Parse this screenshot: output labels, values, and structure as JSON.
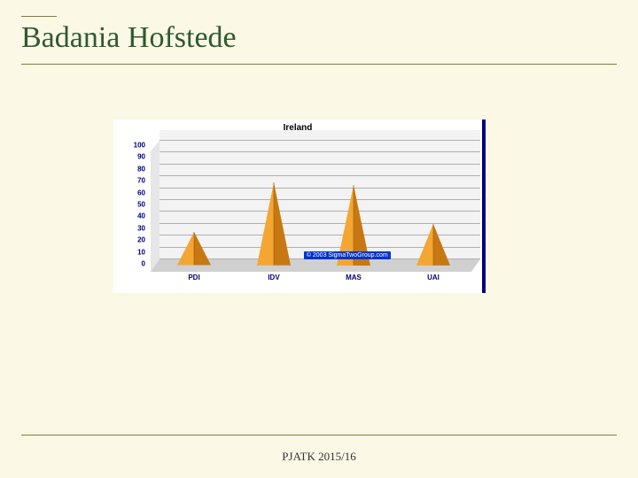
{
  "slide": {
    "title": "Badania Hofstede",
    "footer": "PJATK 2015/16",
    "title_color": "#2e5a2e",
    "title_fontsize": 34,
    "background_color": "#fbf8e6",
    "rule_color": "#8a7a30"
  },
  "chart": {
    "type": "3d-pyramid-bar",
    "title": "Ireland",
    "title_fontsize": 10,
    "title_color": "#000000",
    "axis_label_color": "#000080",
    "axis_label_fontsize": 8,
    "frame_right_color": "#000080",
    "background_color": "#ffffff",
    "backwall_color": "#f3f3f3",
    "floor_color": "#d0d0d0",
    "grid_color": "#b0b0b0",
    "pyramid_fill_light": "#f4a632",
    "pyramid_fill_dark": "#c77812",
    "ylim": [
      0,
      100
    ],
    "ytick_step": 10,
    "yticks": [
      0,
      10,
      20,
      30,
      40,
      50,
      60,
      70,
      80,
      90,
      100
    ],
    "categories": [
      "PDI",
      "IDV",
      "MAS",
      "UAI"
    ],
    "values": [
      28,
      70,
      68,
      35
    ],
    "pyramid_base_width": 38,
    "watermark": "© 2003  SigmaTwoGroup.com"
  }
}
